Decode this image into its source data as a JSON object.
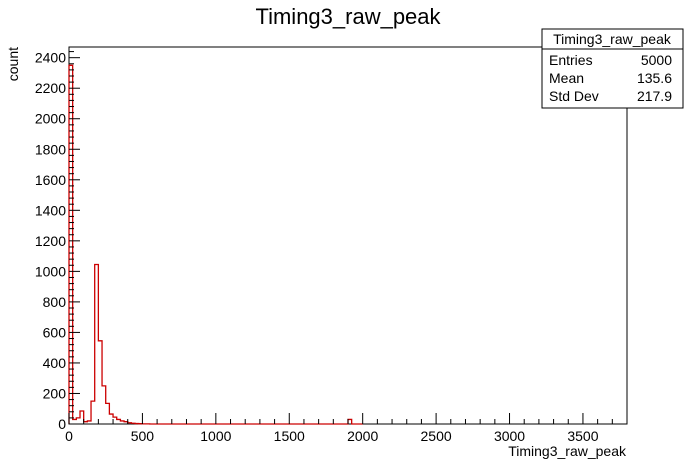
{
  "chart_data": {
    "type": "bar",
    "title": "Timing3_raw_peak",
    "xlabel": "Timing3_raw_peak",
    "ylabel": "count",
    "xlim": [
      0,
      3800
    ],
    "ylim": [
      0,
      2470
    ],
    "x_ticks": [
      0,
      500,
      1000,
      1500,
      2000,
      2500,
      3000,
      3500
    ],
    "y_ticks": [
      0,
      200,
      400,
      600,
      800,
      1000,
      1200,
      1400,
      1600,
      1800,
      2000,
      2200,
      2400
    ],
    "bin_width": 25,
    "series": [
      {
        "values": [
          2350,
          30,
          40,
          85,
          15,
          20,
          150,
          1045,
          545,
          250,
          135,
          65,
          45,
          30,
          20,
          15,
          8,
          5,
          3,
          2,
          1,
          1,
          0,
          0,
          0,
          0,
          0,
          0,
          0,
          0,
          0,
          0,
          0,
          0,
          0,
          0,
          0,
          0,
          0,
          0,
          0,
          0,
          0,
          0,
          0,
          0,
          0,
          0,
          0,
          0,
          0,
          0,
          0,
          0,
          0,
          0,
          0,
          0,
          0,
          0,
          0,
          0,
          0,
          0,
          0,
          0,
          0,
          0,
          0,
          0,
          0,
          0,
          0,
          0,
          0,
          0,
          30,
          0,
          0,
          0
        ]
      }
    ],
    "grid": false,
    "legend": "none",
    "colors": {
      "line": "#cc0000",
      "frame": "#000000"
    },
    "stats_box": {
      "title": "Timing3_raw_peak",
      "rows": [
        {
          "label": "Entries",
          "value": "5000"
        },
        {
          "label": "Mean",
          "value": "135.6"
        },
        {
          "label": "Std Dev",
          "value": "217.9"
        }
      ]
    }
  }
}
